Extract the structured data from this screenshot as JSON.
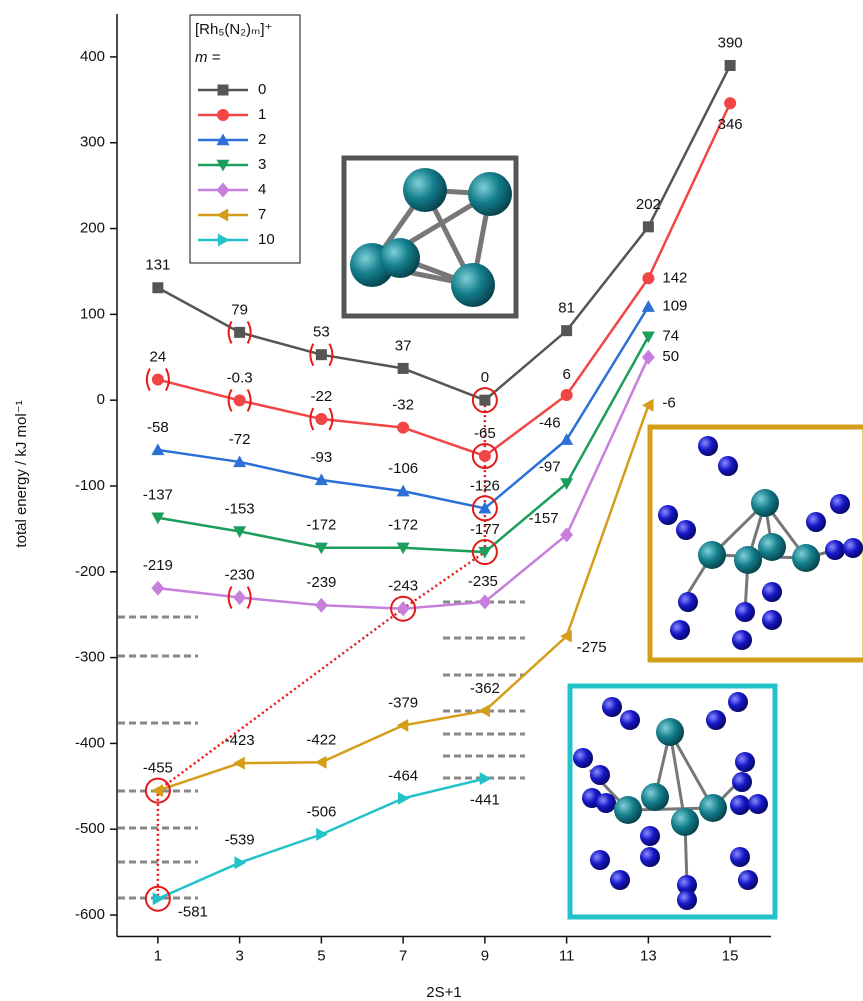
{
  "chart_data": {
    "type": "line",
    "x_label": "2S+1",
    "y_label": "total energy / kJ mol⁻¹",
    "legend_title": "[Rh₅(N₂)ₘ]⁺",
    "legend_label": "m =",
    "x": [
      1,
      3,
      5,
      7,
      9,
      11,
      13,
      15
    ],
    "xlim": [
      0,
      16
    ],
    "xticks": [
      1,
      3,
      5,
      7,
      9,
      11,
      13,
      15
    ],
    "ylim": [
      -625,
      450
    ],
    "yticks": [
      -600,
      -500,
      -400,
      -300,
      -200,
      -100,
      0,
      100,
      200,
      300,
      400
    ],
    "series": [
      {
        "name": "0",
        "color": "#555555",
        "marker": "square",
        "values": [
          131,
          79,
          53,
          37,
          0,
          81,
          202,
          390
        ]
      },
      {
        "name": "1",
        "color": "#f24545",
        "marker": "circle",
        "values": [
          24,
          -0.3,
          -22,
          -32,
          -65,
          6,
          142,
          346
        ]
      },
      {
        "name": "2",
        "color": "#2a70d6",
        "marker": "triangle-up",
        "values": [
          -58,
          -72,
          -93,
          -106,
          -126,
          -46,
          109,
          null
        ]
      },
      {
        "name": "3",
        "color": "#1b9e5a",
        "marker": "triangle-down",
        "values": [
          -137,
          -153,
          -172,
          -172,
          -177,
          -97,
          74,
          null
        ]
      },
      {
        "name": "4",
        "color": "#c67fdc",
        "marker": "diamond",
        "values": [
          -219,
          -230,
          -239,
          -243,
          -235,
          -157,
          50,
          null
        ]
      },
      {
        "name": "7",
        "color": "#d49e1a",
        "marker": "triangle-left",
        "values": [
          -455,
          -423,
          -422,
          -379,
          -362,
          -275,
          -6,
          null
        ]
      },
      {
        "name": "10",
        "color": "#22c3c8",
        "marker": "triangle-right",
        "values": [
          -581,
          -539,
          -506,
          -464,
          -441,
          null,
          null,
          null
        ]
      }
    ]
  }
}
